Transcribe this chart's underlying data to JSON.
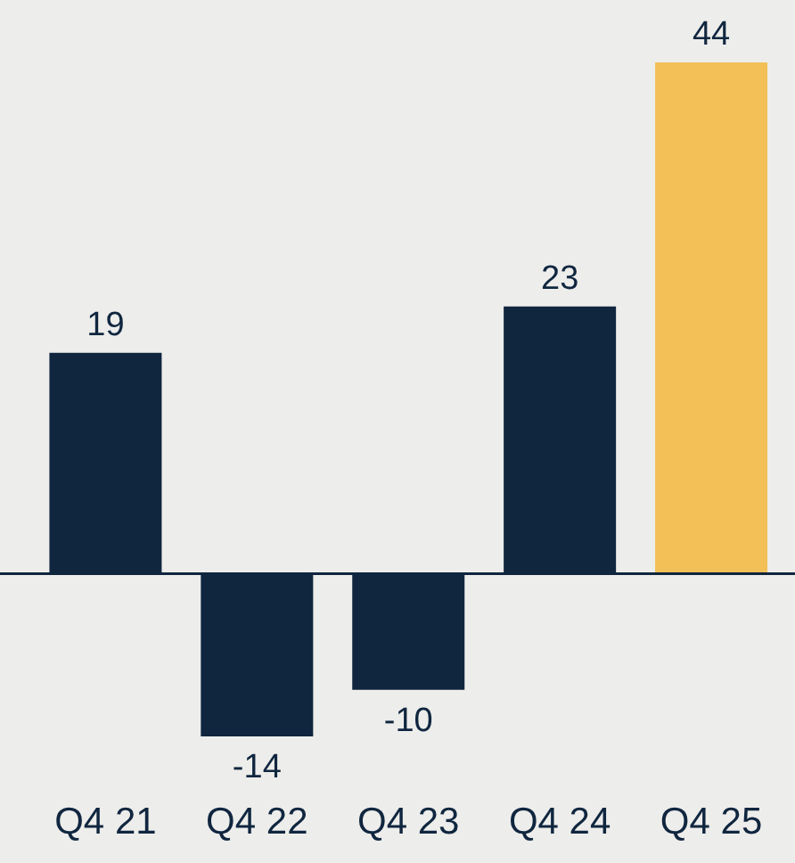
{
  "chart_data": {
    "type": "bar",
    "categories": [
      "Q4 21",
      "Q4 22",
      "Q4 23",
      "Q4 24",
      "Q4 25"
    ],
    "values": [
      19,
      -14,
      -10,
      23,
      44
    ],
    "colors": [
      "#10263f",
      "#10263f",
      "#10263f",
      "#10263f",
      "#f2c057"
    ],
    "data_labels": true,
    "grid": false
  }
}
